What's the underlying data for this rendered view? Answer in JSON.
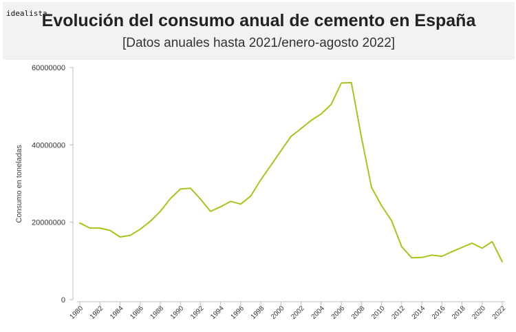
{
  "header": {
    "logo": "idealista",
    "title": "Evolución del consumo anual de cemento en España",
    "subtitle": "[Datos anuales hasta 2021/enero-agosto 2022]"
  },
  "colors": {
    "line": "#a6c51a",
    "axis": "#bdbdbd",
    "header_bg": "#f2f2f1"
  },
  "chart_data": {
    "type": "line",
    "title": "Evolución del consumo anual de cemento en España",
    "subtitle": "[Datos anuales hasta 2021/enero-agosto 2022]",
    "xlabel": "",
    "ylabel": "Consumo en toneladas",
    "xlim": [
      1980,
      2022
    ],
    "ylim": [
      0,
      60000000
    ],
    "y_ticks": [
      0,
      20000000,
      40000000,
      60000000
    ],
    "x_ticks": [
      1980,
      1982,
      1984,
      1986,
      1988,
      1990,
      1992,
      1994,
      1996,
      1998,
      2000,
      2002,
      2004,
      2006,
      2008,
      2010,
      2012,
      2014,
      2016,
      2018,
      2020,
      2022
    ],
    "grid": false,
    "series": [
      {
        "x": [
          1980,
          1981,
          1982,
          1983,
          1984,
          1985,
          1986,
          1987,
          1988,
          1989,
          1990,
          1991,
          1992,
          1993,
          1994,
          1995,
          1996,
          1997,
          1998,
          1999,
          2000,
          2001,
          2002,
          2003,
          2004,
          2005,
          2006,
          2007,
          2008,
          2009,
          2010,
          2011,
          2012,
          2013,
          2014,
          2015,
          2016,
          2017,
          2018,
          2019,
          2020,
          2021,
          2022
        ],
        "y": [
          19800000,
          18500000,
          18500000,
          17900000,
          16200000,
          16600000,
          18200000,
          20200000,
          22800000,
          26100000,
          28600000,
          28800000,
          26000000,
          22800000,
          24000000,
          25400000,
          24700000,
          26800000,
          31000000,
          34700000,
          38500000,
          42200000,
          44200000,
          46300000,
          48000000,
          50500000,
          56000000,
          56100000,
          42000000,
          29000000,
          24300000,
          20400000,
          13700000,
          10800000,
          10900000,
          11500000,
          11200000,
          12400000,
          13500000,
          14600000,
          13300000,
          15000000,
          9800000
        ]
      }
    ]
  }
}
